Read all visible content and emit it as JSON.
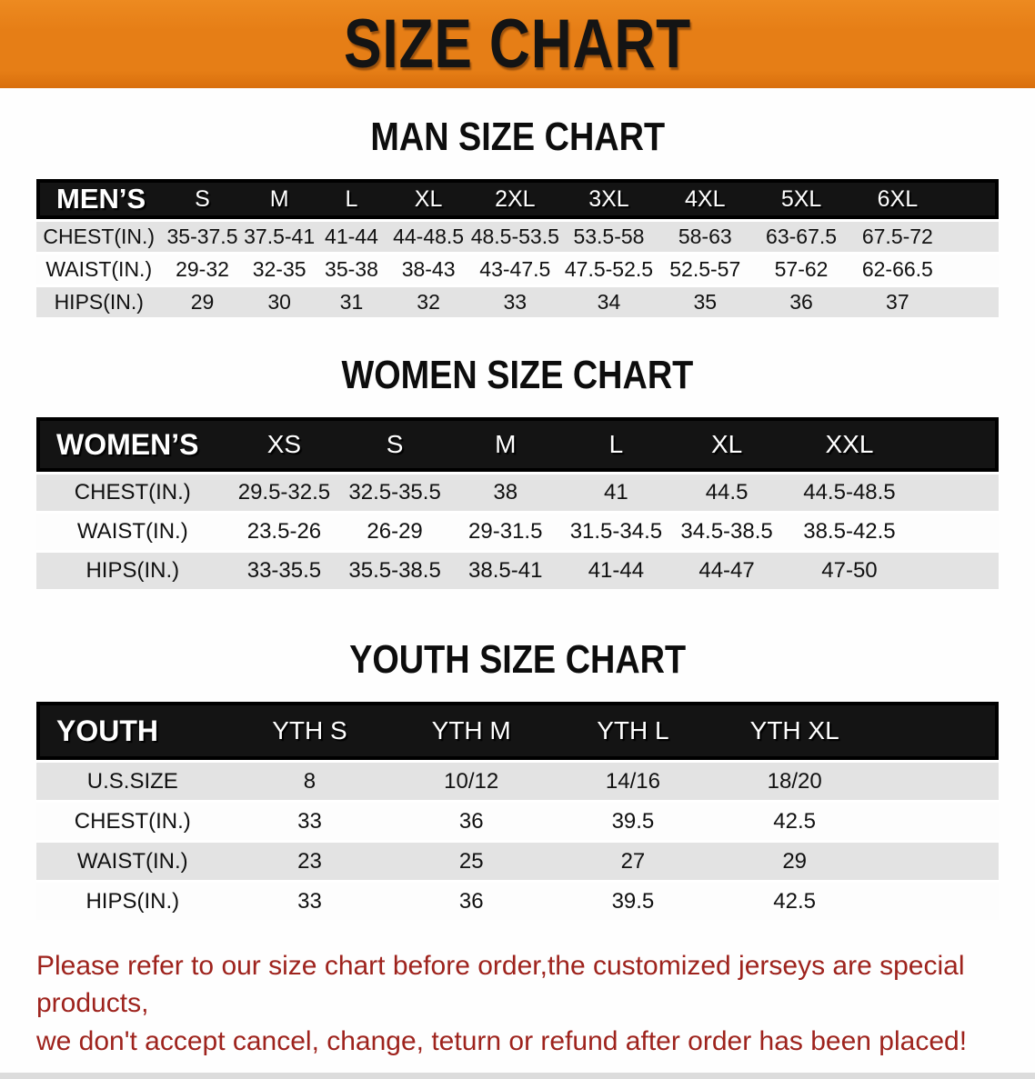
{
  "banner": {
    "title": "SIZE CHART"
  },
  "sections": {
    "men_heading": "MAN SIZE CHART",
    "women_heading": "WOMEN SIZE CHART",
    "youth_heading": "YOUTH SIZE CHART"
  },
  "tables": {
    "men": {
      "header": [
        "MEN’S",
        "S",
        "M",
        "L",
        "XL",
        "2XL",
        "3XL",
        "4XL",
        "5XL",
        "6XL"
      ],
      "rows": [
        [
          "CHEST(IN.)",
          "35-37.5",
          "37.5-41",
          "41-44",
          "44-48.5",
          "48.5-53.5",
          "53.5-58",
          "58-63",
          "63-67.5",
          "67.5-72"
        ],
        [
          "WAIST(IN.)",
          "29-32",
          "32-35",
          "35-38",
          "38-43",
          "43-47.5",
          "47.5-52.5",
          "52.5-57",
          "57-62",
          "62-66.5"
        ],
        [
          "HIPS(IN.)",
          "29",
          "30",
          "31",
          "32",
          "33",
          "34",
          "35",
          "36",
          "37"
        ]
      ]
    },
    "women": {
      "header": [
        "WOMEN’S",
        "XS",
        "S",
        "M",
        "L",
        "XL",
        "XXL"
      ],
      "rows": [
        [
          "CHEST(IN.)",
          "29.5-32.5",
          "32.5-35.5",
          "38",
          "41",
          "44.5",
          "44.5-48.5"
        ],
        [
          "WAIST(IN.)",
          "23.5-26",
          "26-29",
          "29-31.5",
          "31.5-34.5",
          "34.5-38.5",
          "38.5-42.5"
        ],
        [
          "HIPS(IN.)",
          "33-35.5",
          "35.5-38.5",
          "38.5-41",
          "41-44",
          "44-47",
          "47-50"
        ]
      ]
    },
    "youth": {
      "header": [
        "YOUTH",
        "YTH S",
        "YTH M",
        "YTH L",
        "YTH XL"
      ],
      "rows": [
        [
          "U.S.SIZE",
          "8",
          "10/12",
          "14/16",
          "18/20"
        ],
        [
          "CHEST(IN.)",
          "33",
          "36",
          "39.5",
          "42.5"
        ],
        [
          "WAIST(IN.)",
          "23",
          "25",
          "27",
          "29"
        ],
        [
          "HIPS(IN.)",
          "33",
          "36",
          "39.5",
          "42.5"
        ]
      ]
    }
  },
  "disclaimer": {
    "line1": "Please refer to our size chart before order,the customized jerseys are special products,",
    "line2": "we don't accept cancel, change, teturn or refund after order has been placed!"
  },
  "colors": {
    "banner_bg": "#E67E16",
    "band_bg": "#141414",
    "row_gray": "#E3E3E3",
    "disclaimer_red": "#9E231D"
  }
}
